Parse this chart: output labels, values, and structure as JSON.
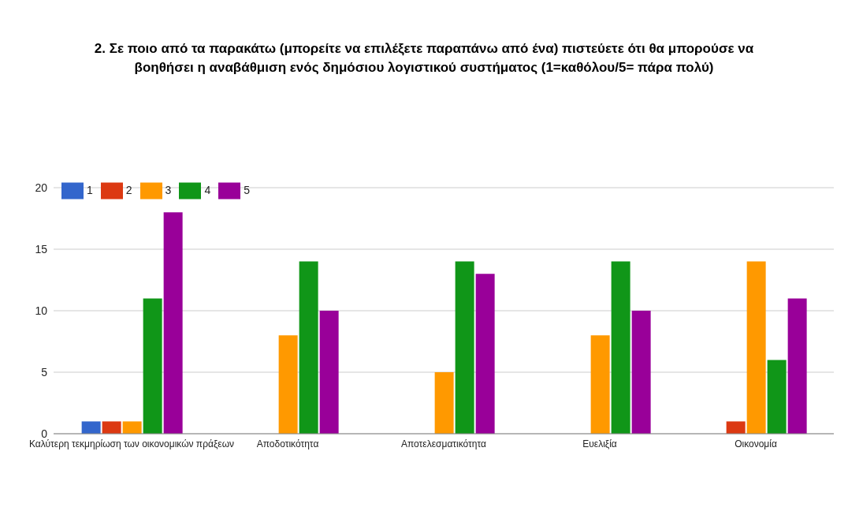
{
  "chart_data": {
    "type": "bar",
    "title": "2. Σε ποιο από τα παρακάτω (μπορείτε να επιλέξετε παραπάνω από ένα) πιστεύετε ότι θα μπορούσε να βοηθήσει η αναβάθμιση ενός δημόσιου λογιστικού συστήματος (1=καθόλου/5= πάρα πολύ)",
    "categories": [
      "Καλύτερη τεκμηρίωση των οικονομικών πράξεων",
      "Αποδοτικότητα",
      "Αποτελεσματικότητα",
      "Ευελιξία",
      "Οικονομία"
    ],
    "series": [
      {
        "name": "1",
        "color": "#3366cc",
        "values": [
          1,
          0,
          0,
          0,
          0
        ]
      },
      {
        "name": "2",
        "color": "#dc3912",
        "values": [
          1,
          0,
          0,
          0,
          1
        ]
      },
      {
        "name": "3",
        "color": "#ff9900",
        "values": [
          1,
          8,
          5,
          8,
          14
        ]
      },
      {
        "name": "4",
        "color": "#109618",
        "values": [
          11,
          14,
          14,
          14,
          6
        ]
      },
      {
        "name": "5",
        "color": "#990099",
        "values": [
          18,
          10,
          13,
          10,
          11
        ]
      }
    ],
    "ylim": [
      0,
      20
    ],
    "yticks": [
      0,
      5,
      10,
      15,
      20
    ],
    "grid": "y",
    "legend": "top left"
  }
}
